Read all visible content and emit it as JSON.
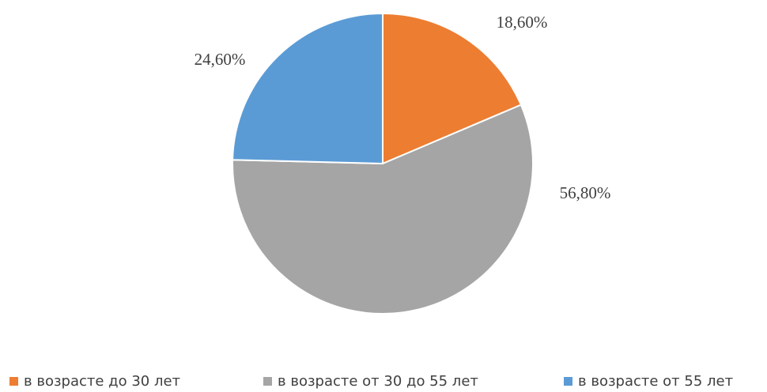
{
  "chart_data": {
    "type": "pie",
    "categories": [
      "в возрасте до 30 лет",
      "в возрасте от 30 до 55 лет",
      "в возрасте от 55 лет"
    ],
    "values": [
      18.6,
      56.8,
      24.6
    ],
    "value_labels": [
      "18,60%",
      "56,80%",
      "24,60%"
    ],
    "colors": [
      "#ed7d31",
      "#a5a5a5",
      "#5b9bd5"
    ],
    "legend": "bottom"
  }
}
